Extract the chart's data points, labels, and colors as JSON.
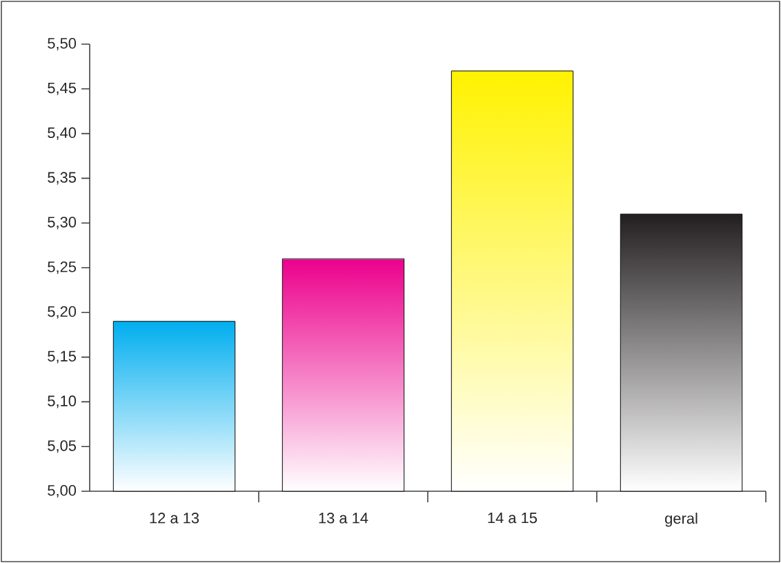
{
  "chart_data": {
    "type": "bar",
    "categories": [
      "12 a 13",
      "13 a 14",
      "14 a 15",
      "geral"
    ],
    "values": [
      5.19,
      5.26,
      5.47,
      5.31
    ],
    "colors": [
      "#00aeef",
      "#ec008c",
      "#fff200",
      "#231f20"
    ],
    "ylim": [
      5.0,
      5.5
    ],
    "yticks": [
      {
        "value": 5.0,
        "label": "5,00"
      },
      {
        "value": 5.05,
        "label": "5,05"
      },
      {
        "value": 5.1,
        "label": "5,10"
      },
      {
        "value": 5.15,
        "label": "5,15"
      },
      {
        "value": 5.2,
        "label": "5,20"
      },
      {
        "value": 5.25,
        "label": "5,25"
      },
      {
        "value": 5.3,
        "label": "5,30"
      },
      {
        "value": 5.35,
        "label": "5,35"
      },
      {
        "value": 5.4,
        "label": "5,40"
      },
      {
        "value": 5.45,
        "label": "5,45"
      },
      {
        "value": 5.5,
        "label": "5,50"
      }
    ]
  }
}
